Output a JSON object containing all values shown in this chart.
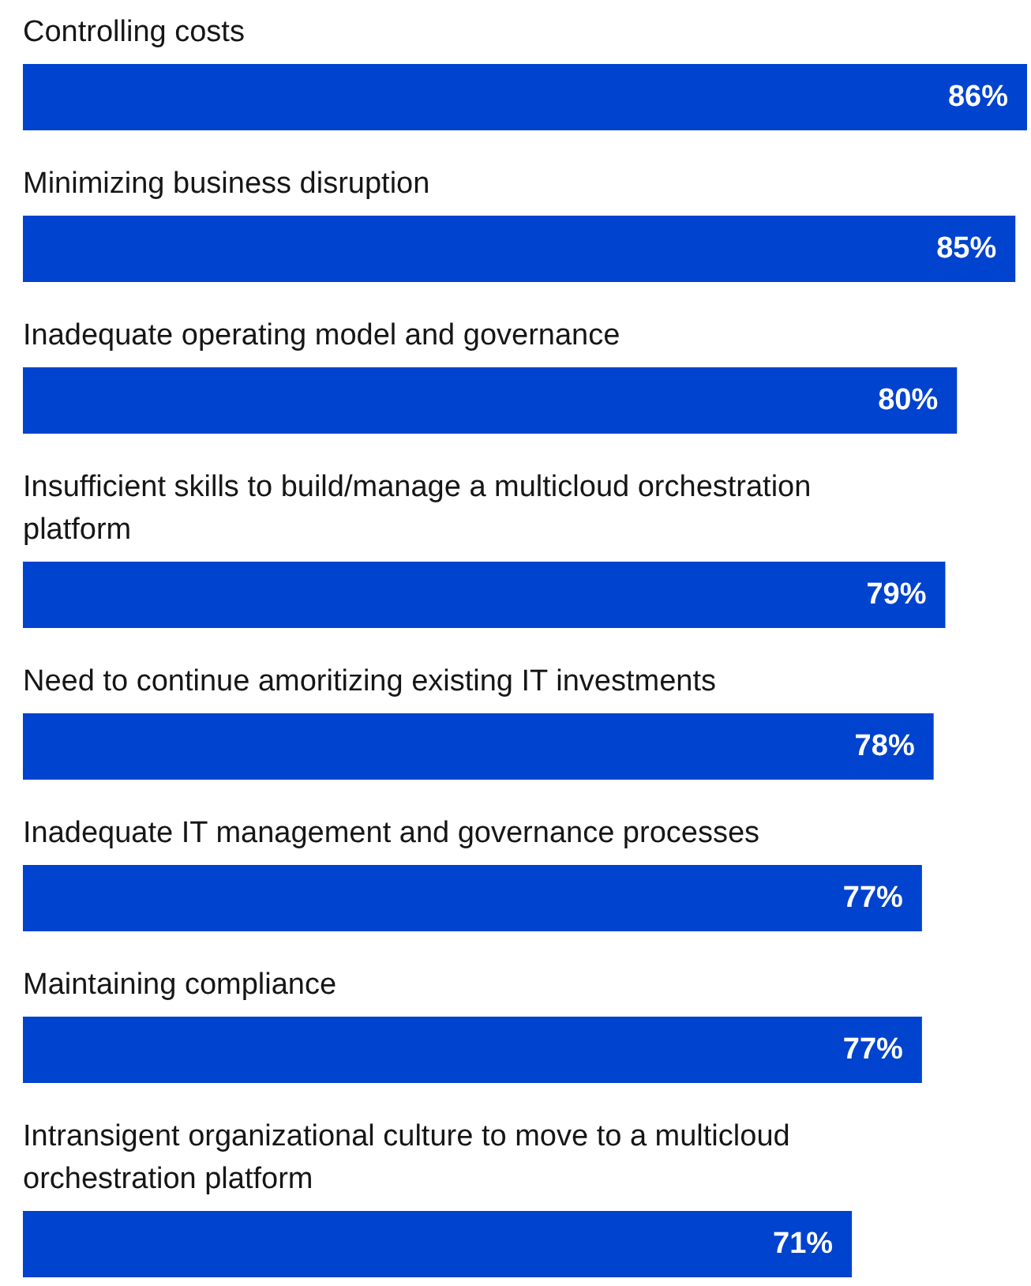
{
  "chart_data": {
    "type": "bar",
    "orientation": "horizontal",
    "categories": [
      "Controlling costs",
      "Minimizing business disruption",
      "Inadequate operating model and governance",
      "Insufficient skills to build/manage a multicloud orchestration platform",
      "Need to continue amoritizing existing IT investments",
      "Inadequate IT management and governance processes",
      "Maintaining compliance",
      "Intransigent organizational culture to move to a multicloud orchestration platform"
    ],
    "values": [
      86,
      85,
      80,
      79,
      78,
      77,
      77,
      71
    ],
    "value_labels": [
      "86%",
      "85%",
      "80%",
      "79%",
      "78%",
      "77%",
      "77%",
      "71%"
    ],
    "color": "#0043ce"
  }
}
